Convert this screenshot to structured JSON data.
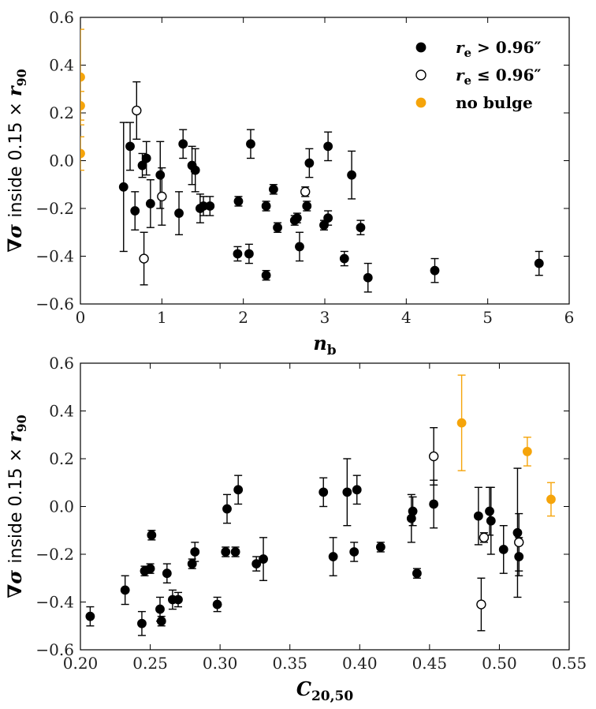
{
  "chart_data": [
    {
      "type": "scatter",
      "xlabel": "n_b",
      "ylabel": "∇σ inside 0.15 × r90",
      "xlim": [
        0,
        6
      ],
      "ylim": [
        -0.6,
        0.6
      ],
      "xticks": [
        "0",
        "1",
        "2",
        "3",
        "4",
        "5",
        "6"
      ],
      "yticks": [
        "−0.6",
        "−0.4",
        "−0.2",
        "0.0",
        "0.2",
        "0.4",
        "0.6"
      ],
      "legend": [
        {
          "label": "r_e > 0.96″",
          "style": "filled",
          "color": "#000000"
        },
        {
          "label": "r_e ≤ 0.96″",
          "style": "open",
          "color": "#000000"
        },
        {
          "label": "no bulge",
          "style": "filled",
          "color": "#f5a40a"
        }
      ],
      "series": [
        {
          "name": "r_e > 0.96″",
          "style": "filled",
          "points": [
            {
              "x": 0.53,
              "y": -0.11,
              "err": 0.27
            },
            {
              "x": 0.61,
              "y": 0.06,
              "err": 0.1
            },
            {
              "x": 0.67,
              "y": -0.21,
              "err": 0.08
            },
            {
              "x": 0.76,
              "y": -0.02,
              "err": 0.05
            },
            {
              "x": 0.81,
              "y": 0.01,
              "err": 0.07
            },
            {
              "x": 0.86,
              "y": -0.18,
              "err": 0.1
            },
            {
              "x": 0.98,
              "y": -0.06,
              "err": 0.14
            },
            {
              "x": 1.21,
              "y": -0.22,
              "err": 0.09
            },
            {
              "x": 1.26,
              "y": 0.07,
              "err": 0.06
            },
            {
              "x": 1.37,
              "y": -0.02,
              "err": 0.08
            },
            {
              "x": 1.41,
              "y": -0.04,
              "err": 0.09
            },
            {
              "x": 1.47,
              "y": -0.2,
              "err": 0.06
            },
            {
              "x": 1.51,
              "y": -0.19,
              "err": 0.04
            },
            {
              "x": 1.59,
              "y": -0.19,
              "err": 0.04
            },
            {
              "x": 1.93,
              "y": -0.39,
              "err": 0.03
            },
            {
              "x": 1.94,
              "y": -0.17,
              "err": 0.02
            },
            {
              "x": 2.07,
              "y": -0.39,
              "err": 0.04
            },
            {
              "x": 2.09,
              "y": 0.07,
              "err": 0.06
            },
            {
              "x": 2.28,
              "y": -0.48,
              "err": 0.02
            },
            {
              "x": 2.28,
              "y": -0.19,
              "err": 0.02
            },
            {
              "x": 2.37,
              "y": -0.12,
              "err": 0.02
            },
            {
              "x": 2.42,
              "y": -0.28,
              "err": 0.02
            },
            {
              "x": 2.63,
              "y": -0.25,
              "err": 0.02
            },
            {
              "x": 2.66,
              "y": -0.24,
              "err": 0.02
            },
            {
              "x": 2.69,
              "y": -0.36,
              "err": 0.06
            },
            {
              "x": 2.78,
              "y": -0.19,
              "err": 0.02
            },
            {
              "x": 2.81,
              "y": -0.01,
              "err": 0.06
            },
            {
              "x": 2.99,
              "y": -0.27,
              "err": 0.02
            },
            {
              "x": 3.04,
              "y": 0.06,
              "err": 0.06
            },
            {
              "x": 3.04,
              "y": -0.24,
              "err": 0.03
            },
            {
              "x": 3.24,
              "y": -0.41,
              "err": 0.03
            },
            {
              "x": 3.33,
              "y": -0.06,
              "err": 0.1
            },
            {
              "x": 3.44,
              "y": -0.28,
              "err": 0.03
            },
            {
              "x": 3.53,
              "y": -0.49,
              "err": 0.06
            },
            {
              "x": 4.35,
              "y": -0.46,
              "err": 0.05
            },
            {
              "x": 5.63,
              "y": -0.43,
              "err": 0.05
            }
          ]
        },
        {
          "name": "r_e ≤ 0.96″",
          "style": "open",
          "points": [
            {
              "x": 0.69,
              "y": 0.21,
              "err": 0.12
            },
            {
              "x": 0.78,
              "y": -0.41,
              "err": 0.11
            },
            {
              "x": 1.0,
              "y": -0.15,
              "err": 0.12
            },
            {
              "x": 2.76,
              "y": -0.13,
              "err": 0.02
            }
          ]
        },
        {
          "name": "no bulge",
          "style": "filled",
          "points": [
            {
              "x": 0.0,
              "y": 0.35,
              "err": 0.2
            },
            {
              "x": 0.0,
              "y": 0.23,
              "err": 0.06
            },
            {
              "x": 0.0,
              "y": 0.03,
              "err": 0.07
            }
          ]
        }
      ]
    },
    {
      "type": "scatter",
      "xlabel": "C_20,50",
      "ylabel": "∇σ inside 0.15 × r90",
      "xlim": [
        0.2,
        0.55
      ],
      "ylim": [
        -0.6,
        0.6
      ],
      "xticks": [
        "0.20",
        "0.25",
        "0.30",
        "0.35",
        "0.40",
        "0.45",
        "0.50",
        "0.55"
      ],
      "yticks": [
        "−0.6",
        "−0.4",
        "−0.2",
        "0.0",
        "0.2",
        "0.4",
        "0.6"
      ],
      "series": [
        {
          "name": "r_e > 0.96″",
          "style": "filled",
          "points": [
            {
              "x": 0.207,
              "y": -0.46,
              "err": 0.04
            },
            {
              "x": 0.232,
              "y": -0.35,
              "err": 0.06
            },
            {
              "x": 0.244,
              "y": -0.49,
              "err": 0.05
            },
            {
              "x": 0.246,
              "y": -0.27,
              "err": 0.02
            },
            {
              "x": 0.25,
              "y": -0.26,
              "err": 0.02
            },
            {
              "x": 0.251,
              "y": -0.12,
              "err": 0.02
            },
            {
              "x": 0.257,
              "y": -0.43,
              "err": 0.05
            },
            {
              "x": 0.258,
              "y": -0.48,
              "err": 0.02
            },
            {
              "x": 0.262,
              "y": -0.28,
              "err": 0.04
            },
            {
              "x": 0.266,
              "y": -0.39,
              "err": 0.04
            },
            {
              "x": 0.27,
              "y": -0.39,
              "err": 0.03
            },
            {
              "x": 0.28,
              "y": -0.24,
              "err": 0.02
            },
            {
              "x": 0.282,
              "y": -0.19,
              "err": 0.04
            },
            {
              "x": 0.298,
              "y": -0.41,
              "err": 0.03
            },
            {
              "x": 0.304,
              "y": -0.19,
              "err": 0.02
            },
            {
              "x": 0.305,
              "y": -0.01,
              "err": 0.06
            },
            {
              "x": 0.311,
              "y": -0.19,
              "err": 0.02
            },
            {
              "x": 0.313,
              "y": 0.07,
              "err": 0.06
            },
            {
              "x": 0.326,
              "y": -0.24,
              "err": 0.03
            },
            {
              "x": 0.331,
              "y": -0.22,
              "err": 0.09
            },
            {
              "x": 0.374,
              "y": 0.06,
              "err": 0.06
            },
            {
              "x": 0.381,
              "y": -0.21,
              "err": 0.08
            },
            {
              "x": 0.391,
              "y": 0.06,
              "err": 0.14
            },
            {
              "x": 0.396,
              "y": -0.19,
              "err": 0.04
            },
            {
              "x": 0.398,
              "y": 0.07,
              "err": 0.06
            },
            {
              "x": 0.415,
              "y": -0.17,
              "err": 0.02
            },
            {
              "x": 0.437,
              "y": -0.05,
              "err": 0.1
            },
            {
              "x": 0.438,
              "y": -0.02,
              "err": 0.06
            },
            {
              "x": 0.441,
              "y": -0.28,
              "err": 0.02
            },
            {
              "x": 0.453,
              "y": 0.01,
              "err": 0.1
            },
            {
              "x": 0.485,
              "y": -0.04,
              "err": 0.12
            },
            {
              "x": 0.493,
              "y": -0.02,
              "err": 0.1
            },
            {
              "x": 0.494,
              "y": -0.06,
              "err": 0.14
            },
            {
              "x": 0.503,
              "y": -0.18,
              "err": 0.1
            },
            {
              "x": 0.513,
              "y": -0.11,
              "err": 0.27
            },
            {
              "x": 0.514,
              "y": -0.21,
              "err": 0.08
            }
          ]
        },
        {
          "name": "r_e ≤ 0.96″",
          "style": "open",
          "points": [
            {
              "x": 0.453,
              "y": 0.21,
              "err": 0.12
            },
            {
              "x": 0.487,
              "y": -0.41,
              "err": 0.11
            },
            {
              "x": 0.489,
              "y": -0.13,
              "err": 0.02
            },
            {
              "x": 0.514,
              "y": -0.15,
              "err": 0.12
            }
          ]
        },
        {
          "name": "no bulge",
          "style": "filled",
          "points": [
            {
              "x": 0.473,
              "y": 0.35,
              "err": 0.2
            },
            {
              "x": 0.52,
              "y": 0.23,
              "err": 0.06
            },
            {
              "x": 0.537,
              "y": 0.03,
              "err": 0.07
            }
          ]
        }
      ]
    }
  ],
  "colors": {
    "filled": "#000000",
    "open_face": "#ffffff",
    "no_bulge": "#f5a40a",
    "axis": "#000000"
  }
}
